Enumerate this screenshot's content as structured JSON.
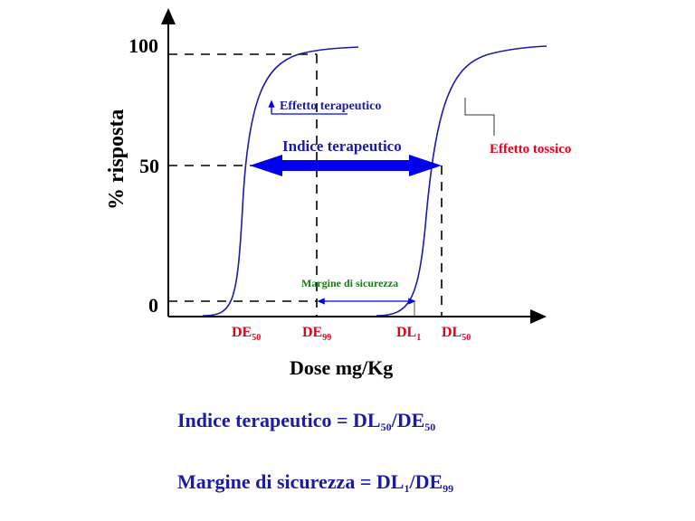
{
  "axis": {
    "y_label": "% risposta",
    "x_label": "Dose mg/Kg",
    "y_ticks": [
      "100",
      "50",
      "0"
    ]
  },
  "annotations": {
    "effetto_terapeutico": "Effetto terapeutico",
    "indice_terapeutico": "Indice terapeutico",
    "effetto_tossico": "Effetto tossico",
    "margine_sicurezza": "Margine di sicurezza"
  },
  "x_markers": [
    {
      "base": "DE",
      "sub": "50"
    },
    {
      "base": "DE",
      "sub": "99"
    },
    {
      "base": "DL",
      "sub": "1"
    },
    {
      "base": "DL",
      "sub": "50"
    }
  ],
  "formulas": {
    "indice": {
      "lhs": "Indice terapeutico = ",
      "a": "DL",
      "a_sub": "50",
      "sep": "/",
      "b": "DE",
      "b_sub": "50"
    },
    "margine": {
      "lhs": "Margine di sicurezza = ",
      "a": "DL",
      "a_sub": "1",
      "sep": "/",
      "b": "DE",
      "b_sub": "99"
    }
  },
  "colors": {
    "curve": "#1c1ca0",
    "arrow": "#0000ee",
    "text_blue": "#1c1ca0",
    "toxic_red": "#e0001b",
    "margin_green": "#1a7a1a"
  }
}
